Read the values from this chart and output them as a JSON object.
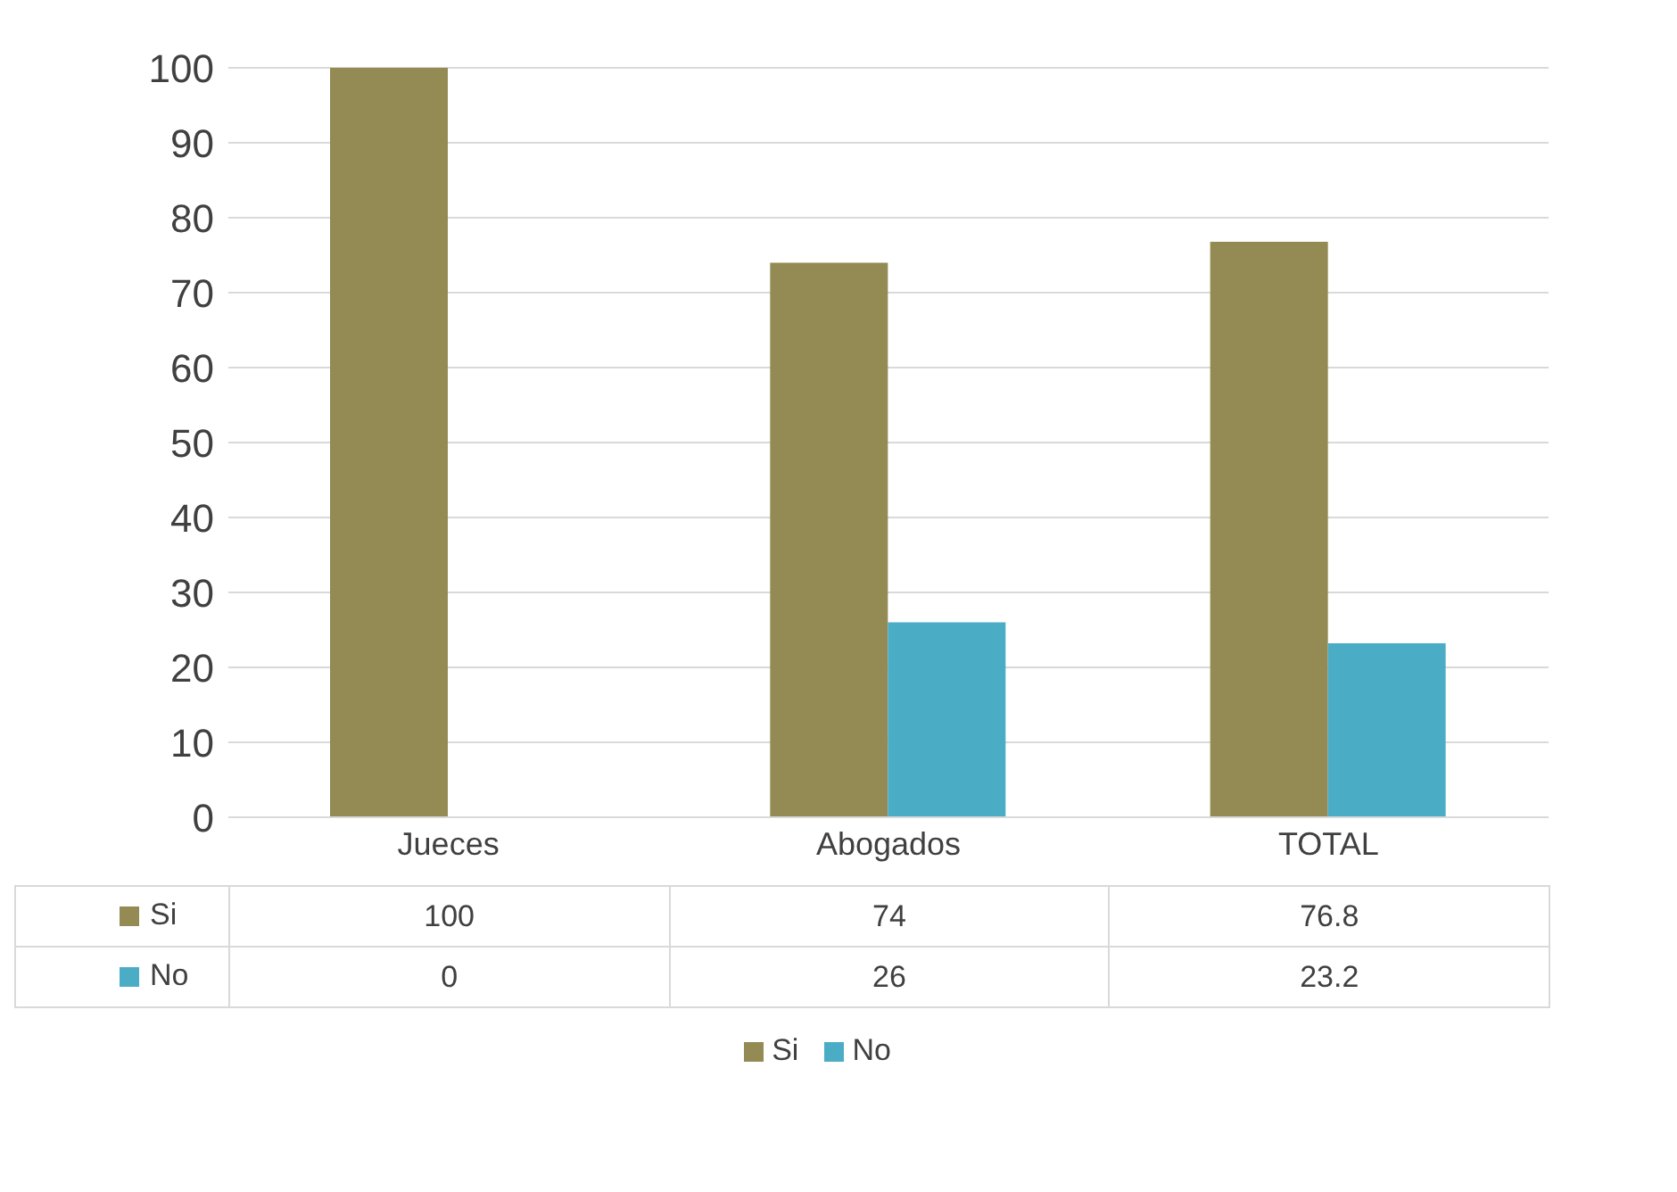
{
  "chart_data": {
    "type": "bar",
    "categories": [
      "Jueces",
      "Abogados",
      "TOTAL"
    ],
    "series": [
      {
        "name": "Si",
        "color": "#948a54",
        "values": [
          100,
          74,
          76.8
        ]
      },
      {
        "name": "No",
        "color": "#4bacc6",
        "values": [
          0,
          26,
          23.2
        ]
      }
    ],
    "ylim": [
      0,
      100
    ],
    "yticks": [
      0,
      10,
      20,
      30,
      40,
      50,
      60,
      70,
      80,
      90,
      100
    ],
    "grid": "y",
    "legend": "bottom",
    "data_labels": true
  }
}
